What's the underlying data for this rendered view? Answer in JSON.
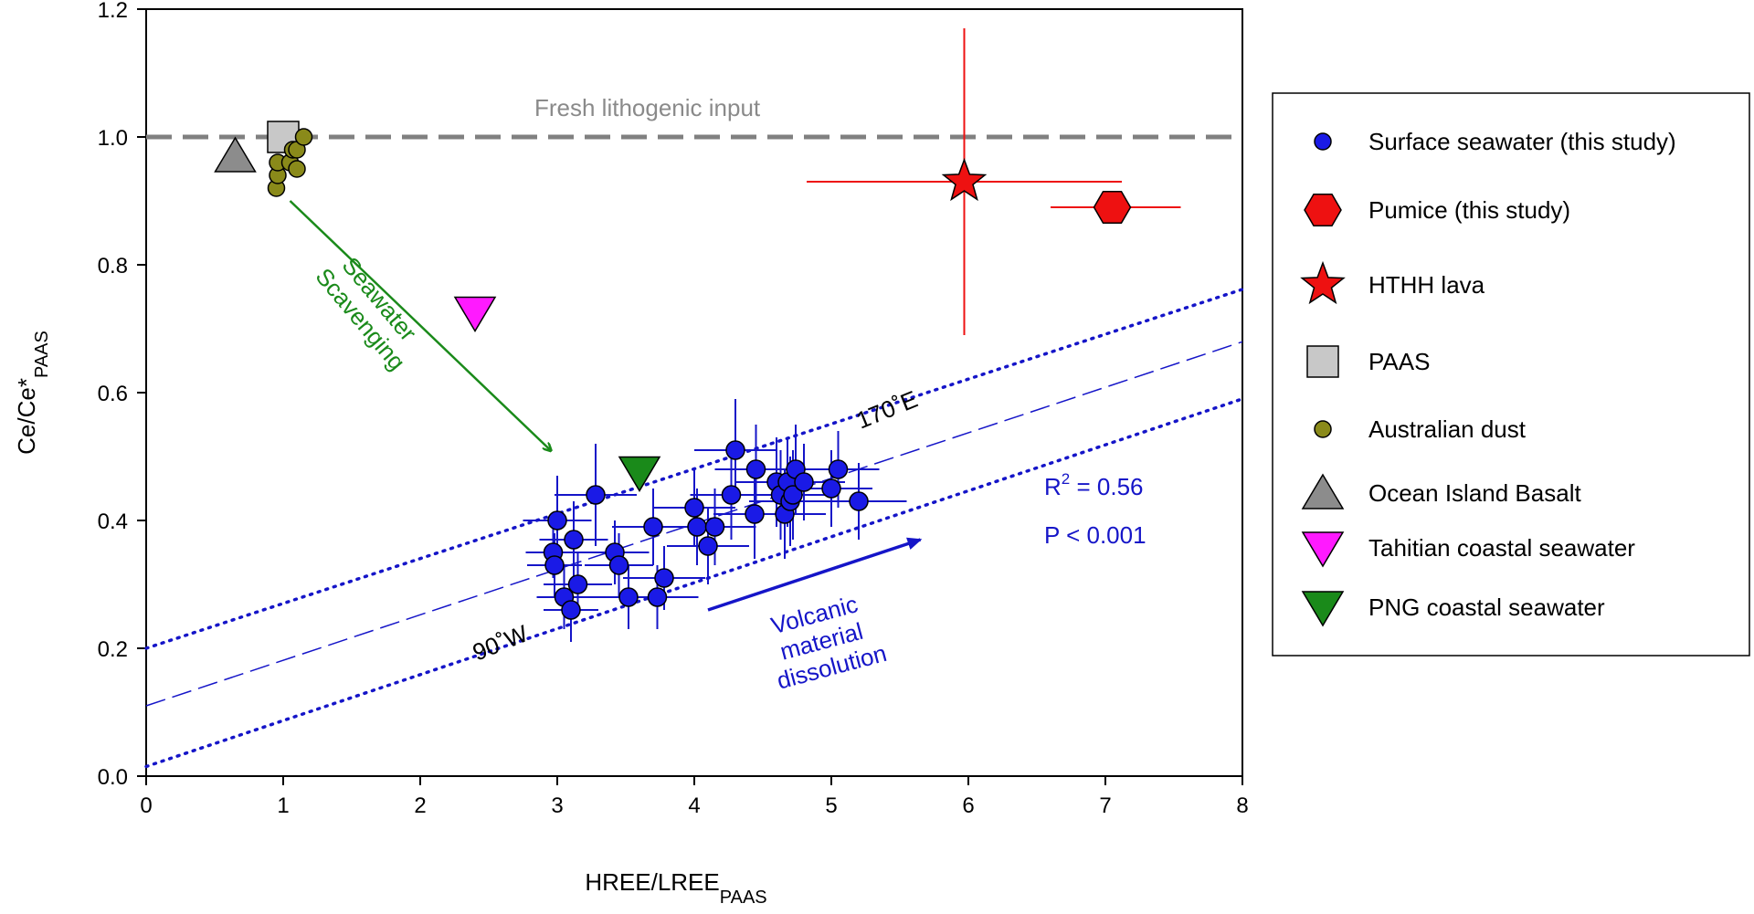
{
  "chart_data": {
    "type": "scatter",
    "xlabel": "HREE/LREE",
    "xlabel_sub": "PAAS",
    "ylabel": "Ce/Ce*",
    "ylabel_sub": "PAAS",
    "xlim": [
      0,
      8
    ],
    "ylim": [
      0,
      1.2
    ],
    "x_ticks": [
      0,
      1,
      2,
      3,
      4,
      5,
      6,
      7,
      8
    ],
    "y_ticks": [
      0.0,
      0.2,
      0.4,
      0.6,
      0.8,
      1.0,
      1.2
    ],
    "x_tick_labels": [
      "0",
      "1",
      "2",
      "3",
      "4",
      "5",
      "6",
      "7",
      "8"
    ],
    "y_tick_labels": [
      "0.0",
      "0.2",
      "0.4",
      "0.6",
      "0.8",
      "1.0",
      "1.2"
    ],
    "grid": false,
    "legend_position": "right-outside",
    "reference_line": {
      "label": "Fresh lithogenic input",
      "y": 1.0,
      "color": "#808080"
    },
    "regression": {
      "fit": {
        "intercept": 0.11,
        "slope": 0.0712
      },
      "upper_ci": {
        "intercept": 0.2,
        "slope": 0.0702
      },
      "lower_ci": {
        "intercept": 0.015,
        "slope": 0.0719
      },
      "color": "#1515c8",
      "r2_label": "R",
      "r2_sup": "2",
      "r2_value": " = 0.56",
      "p_label": "P < 0.001",
      "label_170E": "170˚E",
      "label_90W": "90˚W"
    },
    "arrows": [
      {
        "name": "seawater-scavenging",
        "label_line1": "Seawater",
        "label_line2": "Scavenging",
        "color": "#1a8a1a",
        "from": [
          1.05,
          0.9
        ],
        "to": [
          2.95,
          0.51
        ]
      },
      {
        "name": "volcanic-dissolution",
        "label_line1": "Volcanic",
        "label_line2": "material",
        "label_line3": "dissolution",
        "color": "#1515c8",
        "from": [
          4.1,
          0.26
        ],
        "to": [
          5.65,
          0.37
        ]
      }
    ],
    "series": [
      {
        "name": "Surface seawater (this study)",
        "marker": "circle",
        "color": "#1a1ae6",
        "points": [
          {
            "x": 2.97,
            "y": 0.35,
            "xerr": 0.2,
            "yerr": 0.04
          },
          {
            "x": 2.98,
            "y": 0.33,
            "xerr": 0.2,
            "yerr": 0.05
          },
          {
            "x": 3.0,
            "y": 0.4,
            "xerr": 0.25,
            "yerr": 0.07
          },
          {
            "x": 3.05,
            "y": 0.28,
            "xerr": 0.2,
            "yerr": 0.05
          },
          {
            "x": 3.1,
            "y": 0.26,
            "xerr": 0.2,
            "yerr": 0.05
          },
          {
            "x": 3.12,
            "y": 0.37,
            "xerr": 0.25,
            "yerr": 0.06
          },
          {
            "x": 3.15,
            "y": 0.3,
            "xerr": 0.25,
            "yerr": 0.05
          },
          {
            "x": 3.28,
            "y": 0.44,
            "xerr": 0.3,
            "yerr": 0.08
          },
          {
            "x": 3.42,
            "y": 0.35,
            "xerr": 0.25,
            "yerr": 0.05
          },
          {
            "x": 3.45,
            "y": 0.33,
            "xerr": 0.25,
            "yerr": 0.05
          },
          {
            "x": 3.52,
            "y": 0.28,
            "xerr": 0.3,
            "yerr": 0.05
          },
          {
            "x": 3.7,
            "y": 0.39,
            "xerr": 0.3,
            "yerr": 0.06
          },
          {
            "x": 3.73,
            "y": 0.28,
            "xerr": 0.3,
            "yerr": 0.05
          },
          {
            "x": 3.78,
            "y": 0.31,
            "xerr": 0.3,
            "yerr": 0.05
          },
          {
            "x": 4.0,
            "y": 0.42,
            "xerr": 0.3,
            "yerr": 0.06
          },
          {
            "x": 4.02,
            "y": 0.39,
            "xerr": 0.3,
            "yerr": 0.06
          },
          {
            "x": 4.1,
            "y": 0.36,
            "xerr": 0.3,
            "yerr": 0.06
          },
          {
            "x": 4.15,
            "y": 0.39,
            "xerr": 0.3,
            "yerr": 0.06
          },
          {
            "x": 4.27,
            "y": 0.44,
            "xerr": 0.3,
            "yerr": 0.07
          },
          {
            "x": 4.3,
            "y": 0.51,
            "xerr": 0.3,
            "yerr": 0.08
          },
          {
            "x": 4.44,
            "y": 0.41,
            "xerr": 0.3,
            "yerr": 0.07
          },
          {
            "x": 4.45,
            "y": 0.48,
            "xerr": 0.3,
            "yerr": 0.07
          },
          {
            "x": 4.6,
            "y": 0.46,
            "xerr": 0.3,
            "yerr": 0.07
          },
          {
            "x": 4.63,
            "y": 0.44,
            "xerr": 0.3,
            "yerr": 0.07
          },
          {
            "x": 4.66,
            "y": 0.41,
            "xerr": 0.3,
            "yerr": 0.07
          },
          {
            "x": 4.68,
            "y": 0.46,
            "xerr": 0.3,
            "yerr": 0.07
          },
          {
            "x": 4.7,
            "y": 0.43,
            "xerr": 0.3,
            "yerr": 0.07
          },
          {
            "x": 4.72,
            "y": 0.44,
            "xerr": 0.3,
            "yerr": 0.07
          },
          {
            "x": 4.74,
            "y": 0.48,
            "xerr": 0.3,
            "yerr": 0.07
          },
          {
            "x": 4.8,
            "y": 0.46,
            "xerr": 0.3,
            "yerr": 0.06
          },
          {
            "x": 5.0,
            "y": 0.45,
            "xerr": 0.3,
            "yerr": 0.06
          },
          {
            "x": 5.05,
            "y": 0.48,
            "xerr": 0.3,
            "yerr": 0.06
          },
          {
            "x": 5.2,
            "y": 0.43,
            "xerr": 0.35,
            "yerr": 0.06
          }
        ]
      },
      {
        "name": "Pumice (this study)",
        "marker": "hexagon",
        "color": "#ee1111",
        "points": [
          {
            "x": 7.05,
            "y": 0.89,
            "xerr_low": 0.45,
            "xerr_high": 0.5,
            "yerr": 0.0
          }
        ]
      },
      {
        "name": "HTHH lava",
        "marker": "star",
        "color": "#ee1111",
        "points": [
          {
            "x": 5.97,
            "y": 0.93,
            "xerr_low": 1.15,
            "xerr_high": 1.15,
            "yerr_low": 0.24,
            "yerr_high": 0.24
          }
        ]
      },
      {
        "name": "PAAS",
        "marker": "square",
        "color": "#c8c8c8",
        "points": [
          {
            "x": 1.0,
            "y": 1.0
          }
        ]
      },
      {
        "name": "Australian dust",
        "marker": "circle-small",
        "color": "#8a8a1a",
        "points": [
          {
            "x": 0.95,
            "y": 0.92
          },
          {
            "x": 0.96,
            "y": 0.94
          },
          {
            "x": 0.96,
            "y": 0.96
          },
          {
            "x": 1.05,
            "y": 0.96
          },
          {
            "x": 1.07,
            "y": 0.98
          },
          {
            "x": 1.1,
            "y": 0.95
          },
          {
            "x": 1.1,
            "y": 0.98
          },
          {
            "x": 1.15,
            "y": 1.0
          }
        ]
      },
      {
        "name": "Ocean Island Basalt",
        "marker": "triangle-up",
        "color": "#8c8c8c",
        "points": [
          {
            "x": 0.65,
            "y": 0.97
          }
        ]
      },
      {
        "name": "Tahitian coastal seawater",
        "marker": "triangle-down",
        "color": "#ff1aff",
        "points": [
          {
            "x": 2.4,
            "y": 0.725
          }
        ]
      },
      {
        "name": "PNG coastal seawater",
        "marker": "triangle-down",
        "color": "#1a8a1a",
        "points": [
          {
            "x": 3.6,
            "y": 0.475
          }
        ]
      }
    ]
  }
}
